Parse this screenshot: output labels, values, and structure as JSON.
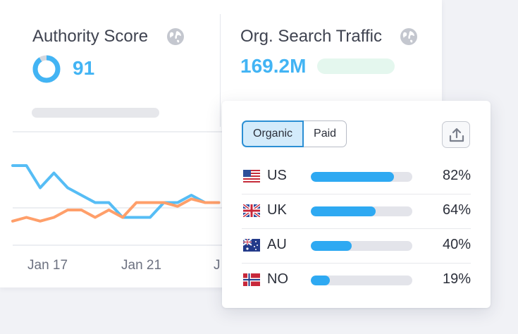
{
  "authority": {
    "title": "Authority Score",
    "value": "91",
    "ring_fraction": 0.91
  },
  "traffic": {
    "title": "Org. Search Traffic",
    "value": "169.2M"
  },
  "chart_data": {
    "type": "line",
    "x_ticks": [
      "Jan 17",
      "Jan 21",
      "J"
    ],
    "series": [
      {
        "color": "#56bdf5",
        "values": [
          10,
          10,
          7,
          9,
          7,
          6,
          5,
          5,
          3,
          3,
          3,
          5,
          5,
          6,
          5,
          5
        ]
      },
      {
        "color": "#ff9f6a",
        "values": [
          2.5,
          3,
          2.5,
          3,
          4,
          4,
          3,
          4,
          3,
          5,
          5,
          5,
          4.5,
          5.5,
          5,
          5
        ]
      }
    ]
  },
  "popup": {
    "tabs": [
      {
        "label": "Organic",
        "active": true
      },
      {
        "label": "Paid",
        "active": false
      }
    ],
    "export_icon": "upload-icon",
    "rows": [
      {
        "code": "US",
        "pct_label": "82%",
        "fraction": 0.82
      },
      {
        "code": "UK",
        "pct_label": "64%",
        "fraction": 0.64
      },
      {
        "code": "AU",
        "pct_label": "40%",
        "fraction": 0.4
      },
      {
        "code": "NO",
        "pct_label": "19%",
        "fraction": 0.19
      }
    ]
  }
}
